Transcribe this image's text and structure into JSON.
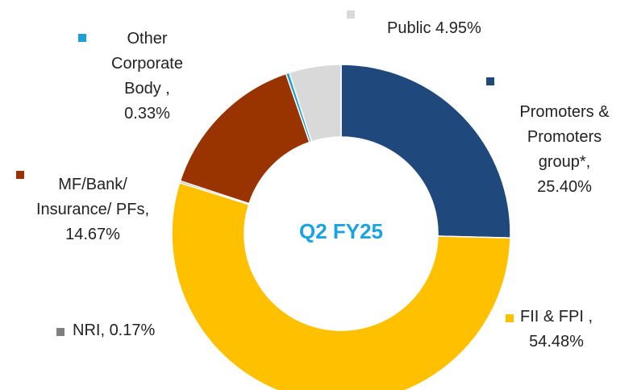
{
  "chart_data": {
    "type": "donut",
    "center_label": "Q2 FY25",
    "categories": [
      "Promoters & Promoters group*,",
      "FII & FPI ,",
      "NRI,",
      "MF/Bank/ Insurance/ PFs,",
      "Other Corporate Body ,",
      "Public"
    ],
    "values": [
      25.4,
      54.48,
      0.17,
      14.67,
      0.33,
      4.95
    ],
    "value_labels": [
      "25.40%",
      "54.48%",
      "0.17%",
      "14.67%",
      "0.33%",
      "4.95%"
    ],
    "colors": [
      "#1f497d",
      "#ffc000",
      "#7f7f7f",
      "#993300",
      "#1ba1d8",
      "#d9d9d9"
    ]
  }
}
